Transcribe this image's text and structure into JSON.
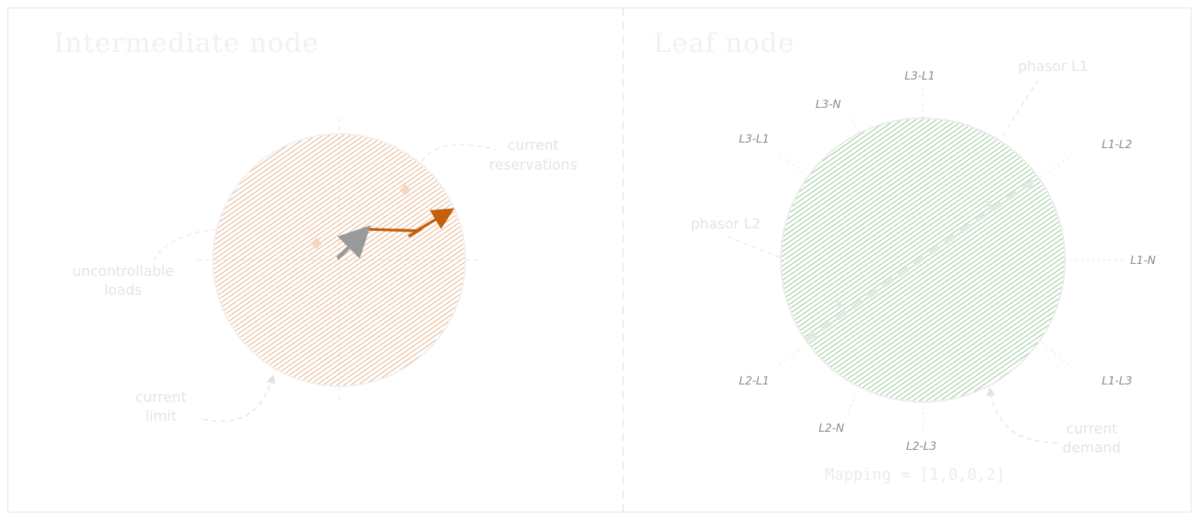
{
  "panels": {
    "left": {
      "title": "Intermediate node",
      "annotations": {
        "reservations": [
          "current",
          "reservations"
        ],
        "uncontrollable": [
          "uncontrollable",
          "loads"
        ],
        "limit": [
          "current",
          "limit"
        ]
      },
      "colors": {
        "disc": "#e08a4a",
        "arrow_main": "#c45f0a",
        "arrow_gray": "#9a9a9a"
      }
    },
    "right": {
      "title": "Leaf node",
      "phase_labels": {
        "l3_l1_top": "L3-L1",
        "l3_n": "L3-N",
        "l3_l1_left": "L3-L1",
        "l1_l2": "L1-L2",
        "l1_n": "L1-N",
        "l1_l3": "L1-L3",
        "l2_l1": "L2-L1",
        "l2_n": "L2-N",
        "l2_l3": "L2-L3"
      },
      "annotations": {
        "phasor_l1": "phasor L1",
        "phasor_l2": "phasor L2",
        "demand": [
          "current",
          "demand"
        ]
      },
      "mapping": "Mapping = [1,0,0,2]",
      "colors": {
        "disc": "#5fae5f"
      }
    }
  }
}
